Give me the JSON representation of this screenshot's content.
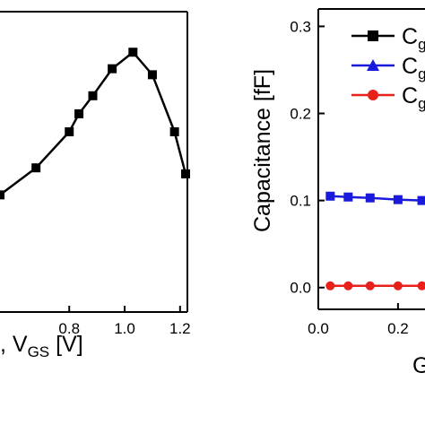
{
  "chart_data": [
    {
      "type": "line",
      "xlim": [
        0.55,
        1.22
      ],
      "ylim": [
        0,
        1
      ],
      "xticks": [
        "0.8",
        "1.0",
        "1.2"
      ],
      "xlabel_prefix": ", V",
      "xlabel_sub": "GS",
      "xlabel_suffix": " [V]",
      "series": [
        {
          "name": "",
          "color": "#000000",
          "marker": "square",
          "x": [
            0.55,
            0.68,
            0.8,
            0.835,
            0.885,
            0.955,
            1.03,
            1.1,
            1.18,
            1.22
          ],
          "y": [
            0.39,
            0.48,
            0.6,
            0.66,
            0.72,
            0.81,
            0.865,
            0.79,
            0.6,
            0.46
          ]
        }
      ]
    },
    {
      "type": "line",
      "xlim": [
        0,
        0.45
      ],
      "ylim": [
        -0.025,
        0.32
      ],
      "xticks": [
        "0.0",
        "0.2"
      ],
      "yticks": [
        "0.0",
        "0.1",
        "0.2",
        "0.3"
      ],
      "ylabel": "Capacitance [fF]",
      "xlabel": "G",
      "legend_position": "top-right",
      "legend": [
        {
          "label": "C",
          "sub": "g",
          "color": "#000000",
          "marker": "square"
        },
        {
          "label": "C",
          "sub": "g",
          "color": "#1a1adc",
          "marker": "triangle"
        },
        {
          "label": "C",
          "sub": "g",
          "color": "#e8201c",
          "marker": "circle"
        }
      ],
      "series": [
        {
          "name": "",
          "color": "#1a1adc",
          "marker": "square",
          "x": [
            0.03,
            0.075,
            0.13,
            0.2,
            0.26,
            0.33,
            0.4
          ],
          "y": [
            0.105,
            0.104,
            0.103,
            0.101,
            0.1,
            0.1,
            0.1
          ]
        },
        {
          "name": "",
          "color": "#e8201c",
          "marker": "circle",
          "x": [
            0.03,
            0.075,
            0.13,
            0.2,
            0.26,
            0.33,
            0.4
          ],
          "y": [
            0.002,
            0.002,
            0.002,
            0.002,
            0.002,
            0.002,
            0.002
          ]
        }
      ]
    }
  ]
}
